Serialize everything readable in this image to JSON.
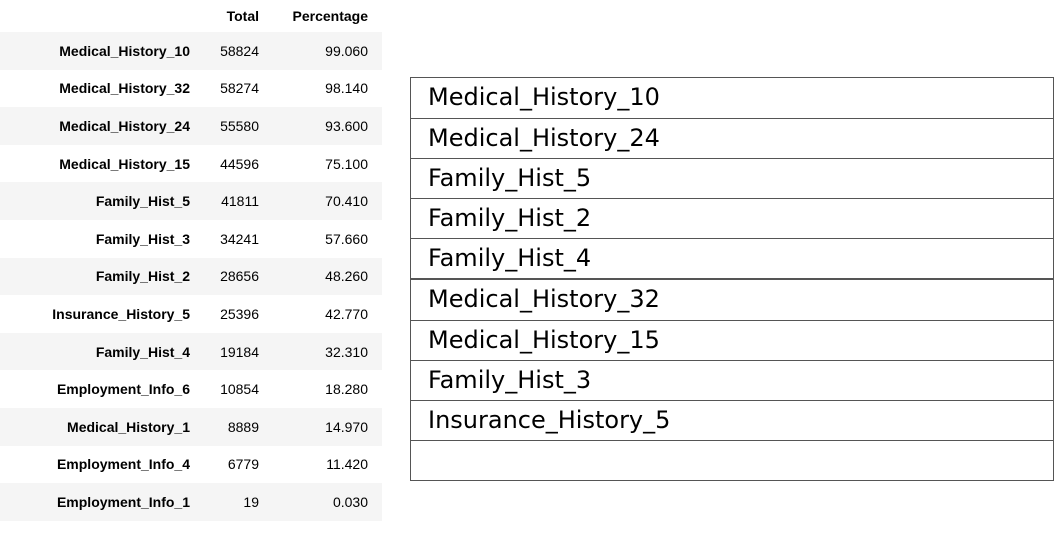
{
  "dataframe": {
    "columns": [
      "Total",
      "Percentage"
    ],
    "rows": [
      {
        "index": "Medical_History_10",
        "total": "58824",
        "percentage": "99.060"
      },
      {
        "index": "Medical_History_32",
        "total": "58274",
        "percentage": "98.140"
      },
      {
        "index": "Medical_History_24",
        "total": "55580",
        "percentage": "93.600"
      },
      {
        "index": "Medical_History_15",
        "total": "44596",
        "percentage": "75.100"
      },
      {
        "index": "Family_Hist_5",
        "total": "41811",
        "percentage": "70.410"
      },
      {
        "index": "Family_Hist_3",
        "total": "34241",
        "percentage": "57.660"
      },
      {
        "index": "Family_Hist_2",
        "total": "28656",
        "percentage": "48.260"
      },
      {
        "index": "Insurance_History_5",
        "total": "25396",
        "percentage": "42.770"
      },
      {
        "index": "Family_Hist_4",
        "total": "19184",
        "percentage": "32.310"
      },
      {
        "index": "Employment_Info_6",
        "total": "10854",
        "percentage": "18.280"
      },
      {
        "index": "Medical_History_1",
        "total": "8889",
        "percentage": "14.970"
      },
      {
        "index": "Employment_Info_4",
        "total": "6779",
        "percentage": "11.420"
      },
      {
        "index": "Employment_Info_1",
        "total": "19",
        "percentage": "0.030"
      }
    ]
  },
  "box_list": {
    "group_a": [
      "Medical_History_10",
      "Medical_History_24",
      "Family_Hist_5",
      "Family_Hist_2",
      "Family_Hist_4"
    ],
    "group_b": [
      "Medical_History_32",
      "Medical_History_15",
      "Family_Hist_3",
      "Insurance_History_5",
      ""
    ]
  }
}
